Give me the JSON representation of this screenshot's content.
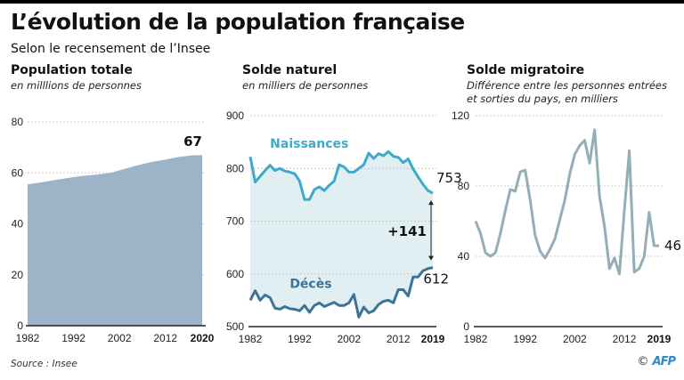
{
  "header": {
    "title": "L’évolution de la population française",
    "subtitle": "Selon le recensement de l’Insee"
  },
  "footer": {
    "source": "Source : Insee",
    "copyright_symbol": "©",
    "agency": "AFP"
  },
  "colors": {
    "population_area": "#9db3c8",
    "naissances_line": "#3fa9c9",
    "naissances_fill": "#e1eff2",
    "deces_line": "#3b7399",
    "migration_line": "#94aeb8",
    "grid": "#bfbfbf",
    "axis": "#222222",
    "afp_blue": "#2d8ac6"
  },
  "panels": [
    {
      "title": "Population totale",
      "subtitle_lines": [
        "en milllions de personnes"
      ]
    },
    {
      "title": "Solde naturel",
      "subtitle_lines": [
        "en milliers de personnes"
      ]
    },
    {
      "title": "Solde migratoire",
      "subtitle_lines": [
        "Différence entre les personnes entrées",
        "et sorties du pays, en milliers"
      ]
    }
  ],
  "chart_data": [
    {
      "type": "area",
      "title": "Population totale",
      "subtitle": "en milllions de personnes",
      "xlabel": "",
      "ylabel": "",
      "xlim": [
        1982,
        2020
      ],
      "ylim": [
        0,
        80
      ],
      "yticks": [
        0,
        20,
        40,
        60,
        80
      ],
      "xticks": [
        "1982",
        "1992",
        "2002",
        "2012",
        "2020"
      ],
      "xticks_bold": [
        "2020"
      ],
      "grid": true,
      "x": [
        1982,
        1985,
        1988,
        1991,
        1994,
        1997,
        2000,
        2003,
        2006,
        2009,
        2012,
        2015,
        2018,
        2020
      ],
      "series": [
        {
          "name": "Population",
          "values": [
            55.5,
            56.3,
            57.2,
            58.1,
            58.8,
            59.3,
            60.0,
            61.5,
            63.0,
            64.3,
            65.2,
            66.3,
            66.9,
            67.0
          ]
        }
      ],
      "end_label": "67"
    },
    {
      "type": "line",
      "title": "Solde naturel",
      "subtitle": "en milliers de personnes",
      "xlim": [
        1982,
        2019
      ],
      "ylim": [
        500,
        900
      ],
      "yticks": [
        500,
        600,
        700,
        800,
        900
      ],
      "xticks": [
        "1982",
        "1992",
        "2002",
        "2012",
        "2019"
      ],
      "xticks_bold": [
        "2019"
      ],
      "grid": true,
      "x": [
        1982,
        1983,
        1984,
        1985,
        1986,
        1987,
        1988,
        1989,
        1990,
        1991,
        1992,
        1993,
        1994,
        1995,
        1996,
        1997,
        1998,
        1999,
        2000,
        2001,
        2002,
        2003,
        2004,
        2005,
        2006,
        2007,
        2008,
        2009,
        2010,
        2011,
        2012,
        2013,
        2014,
        2015,
        2016,
        2017,
        2018,
        2019
      ],
      "series": [
        {
          "name": "Naissances",
          "values": [
            822,
            774,
            785,
            796,
            806,
            796,
            800,
            795,
            793,
            790,
            776,
            741,
            741,
            760,
            765,
            758,
            768,
            776,
            807,
            803,
            793,
            793,
            800,
            807,
            829,
            819,
            828,
            824,
            832,
            823,
            821,
            811,
            818,
            799,
            784,
            770,
            758,
            753
          ],
          "end_label": "753"
        },
        {
          "name": "Décès",
          "values": [
            550,
            568,
            550,
            560,
            555,
            535,
            533,
            538,
            534,
            533,
            530,
            540,
            527,
            540,
            545,
            538,
            542,
            546,
            540,
            540,
            545,
            561,
            518,
            537,
            526,
            530,
            542,
            548,
            550,
            545,
            570,
            570,
            558,
            594,
            594,
            606,
            610,
            612
          ],
          "end_label": "612"
        }
      ],
      "annotation": {
        "text": "+141",
        "from": 612,
        "to": 753,
        "x": 2019
      }
    },
    {
      "type": "line",
      "title": "Solde migratoire",
      "subtitle": "Différence entre les personnes entrées et sorties du pays, en milliers",
      "xlim": [
        1982,
        2019
      ],
      "ylim": [
        0,
        120
      ],
      "yticks": [
        0,
        40,
        80,
        120
      ],
      "xticks": [
        "1982",
        "1992",
        "2002",
        "2012",
        "2019"
      ],
      "xticks_bold": [
        "2019"
      ],
      "grid": true,
      "x": [
        1982,
        1983,
        1984,
        1985,
        1986,
        1987,
        1988,
        1989,
        1990,
        1991,
        1992,
        1993,
        1994,
        1995,
        1996,
        1997,
        1998,
        1999,
        2000,
        2001,
        2002,
        2003,
        2004,
        2005,
        2006,
        2007,
        2008,
        2009,
        2010,
        2011,
        2012,
        2013,
        2014,
        2015,
        2016,
        2017,
        2018,
        2019
      ],
      "series": [
        {
          "name": "Solde migratoire",
          "values": [
            60,
            53,
            42,
            40,
            42,
            53,
            66,
            78,
            77,
            88,
            89,
            72,
            52,
            43,
            39,
            44,
            50,
            61,
            72,
            87,
            98,
            103,
            106,
            93,
            112,
            74,
            57,
            33,
            39,
            30,
            66,
            100,
            31,
            33,
            40,
            65,
            46,
            46
          ],
          "end_label": "46"
        }
      ]
    }
  ]
}
